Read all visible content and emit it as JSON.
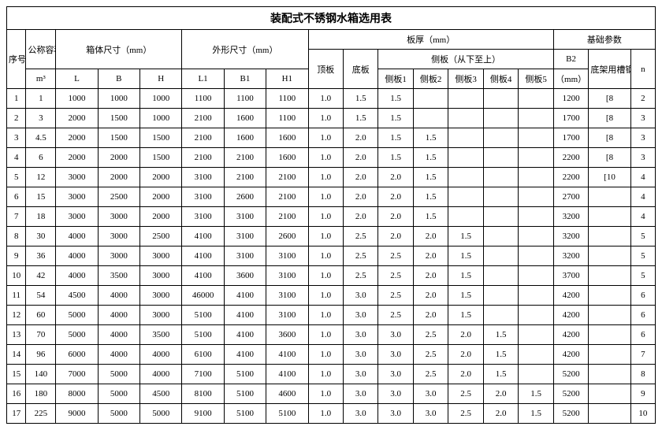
{
  "title": "装配式不锈钢水箱选用表",
  "headers": {
    "seq": "序号",
    "vol": "公称容积",
    "vol_unit": "m³",
    "box_dim": "箱体尺寸（mm）",
    "outer_dim": "外形尺寸（mm）",
    "thickness": "板厚（mm）",
    "foundation": "基础参数",
    "L": "L",
    "B": "B",
    "H": "H",
    "L1": "L1",
    "B1": "B1",
    "H1": "H1",
    "top_plate": "顶板",
    "bottom_plate": "底板",
    "side_plate": "侧板（从下至上）",
    "side1": "侧板1",
    "side2": "侧板2",
    "side3": "侧板3",
    "side4": "侧板4",
    "side5": "侧板5",
    "B2": "B2",
    "B2_unit": "（mm）",
    "channel": "底架用槽钢",
    "n": "n"
  },
  "rows": [
    {
      "seq": "1",
      "vol": "1",
      "L": "1000",
      "B": "1000",
      "H": "1000",
      "L1": "1100",
      "B1": "1100",
      "H1": "1100",
      "top": "1.0",
      "bot": "1.5",
      "s1": "1.5",
      "s2": "",
      "s3": "",
      "s4": "",
      "s5": "",
      "B2": "1200",
      "ch": "[8",
      "n": "2"
    },
    {
      "seq": "2",
      "vol": "3",
      "L": "2000",
      "B": "1500",
      "H": "1000",
      "L1": "2100",
      "B1": "1600",
      "H1": "1100",
      "top": "1.0",
      "bot": "1.5",
      "s1": "1.5",
      "s2": "",
      "s3": "",
      "s4": "",
      "s5": "",
      "B2": "1700",
      "ch": "[8",
      "n": "3"
    },
    {
      "seq": "3",
      "vol": "4.5",
      "L": "2000",
      "B": "1500",
      "H": "1500",
      "L1": "2100",
      "B1": "1600",
      "H1": "1600",
      "top": "1.0",
      "bot": "2.0",
      "s1": "1.5",
      "s2": "1.5",
      "s3": "",
      "s4": "",
      "s5": "",
      "B2": "1700",
      "ch": "[8",
      "n": "3"
    },
    {
      "seq": "4",
      "vol": "6",
      "L": "2000",
      "B": "2000",
      "H": "1500",
      "L1": "2100",
      "B1": "2100",
      "H1": "1600",
      "top": "1.0",
      "bot": "2.0",
      "s1": "1.5",
      "s2": "1.5",
      "s3": "",
      "s4": "",
      "s5": "",
      "B2": "2200",
      "ch": "[8",
      "n": "3"
    },
    {
      "seq": "5",
      "vol": "12",
      "L": "3000",
      "B": "2000",
      "H": "2000",
      "L1": "3100",
      "B1": "2100",
      "H1": "2100",
      "top": "1.0",
      "bot": "2.0",
      "s1": "2.0",
      "s2": "1.5",
      "s3": "",
      "s4": "",
      "s5": "",
      "B2": "2200",
      "ch": "[10",
      "n": "4"
    },
    {
      "seq": "6",
      "vol": "15",
      "L": "3000",
      "B": "2500",
      "H": "2000",
      "L1": "3100",
      "B1": "2600",
      "H1": "2100",
      "top": "1.0",
      "bot": "2.0",
      "s1": "2.0",
      "s2": "1.5",
      "s3": "",
      "s4": "",
      "s5": "",
      "B2": "2700",
      "ch": "",
      "n": "4"
    },
    {
      "seq": "7",
      "vol": "18",
      "L": "3000",
      "B": "3000",
      "H": "2000",
      "L1": "3100",
      "B1": "3100",
      "H1": "2100",
      "top": "1.0",
      "bot": "2.0",
      "s1": "2.0",
      "s2": "1.5",
      "s3": "",
      "s4": "",
      "s5": "",
      "B2": "3200",
      "ch": "",
      "n": "4"
    },
    {
      "seq": "8",
      "vol": "30",
      "L": "4000",
      "B": "3000",
      "H": "2500",
      "L1": "4100",
      "B1": "3100",
      "H1": "2600",
      "top": "1.0",
      "bot": "2.5",
      "s1": "2.0",
      "s2": "2.0",
      "s3": "1.5",
      "s4": "",
      "s5": "",
      "B2": "3200",
      "ch": "",
      "n": "5"
    },
    {
      "seq": "9",
      "vol": "36",
      "L": "4000",
      "B": "3000",
      "H": "3000",
      "L1": "4100",
      "B1": "3100",
      "H1": "3100",
      "top": "1.0",
      "bot": "2.5",
      "s1": "2.5",
      "s2": "2.0",
      "s3": "1.5",
      "s4": "",
      "s5": "",
      "B2": "3200",
      "ch": "",
      "n": "5"
    },
    {
      "seq": "10",
      "vol": "42",
      "L": "4000",
      "B": "3500",
      "H": "3000",
      "L1": "4100",
      "B1": "3600",
      "H1": "3100",
      "top": "1.0",
      "bot": "2.5",
      "s1": "2.5",
      "s2": "2.0",
      "s3": "1.5",
      "s4": "",
      "s5": "",
      "B2": "3700",
      "ch": "",
      "n": "5"
    },
    {
      "seq": "11",
      "vol": "54",
      "L": "4500",
      "B": "4000",
      "H": "3000",
      "L1": "46000",
      "B1": "4100",
      "H1": "3100",
      "top": "1.0",
      "bot": "3.0",
      "s1": "2.5",
      "s2": "2.0",
      "s3": "1.5",
      "s4": "",
      "s5": "",
      "B2": "4200",
      "ch": "",
      "n": "6"
    },
    {
      "seq": "12",
      "vol": "60",
      "L": "5000",
      "B": "4000",
      "H": "3000",
      "L1": "5100",
      "B1": "4100",
      "H1": "3100",
      "top": "1.0",
      "bot": "3.0",
      "s1": "2.5",
      "s2": "2.0",
      "s3": "1.5",
      "s4": "",
      "s5": "",
      "B2": "4200",
      "ch": "",
      "n": "6"
    },
    {
      "seq": "13",
      "vol": "70",
      "L": "5000",
      "B": "4000",
      "H": "3500",
      "L1": "5100",
      "B1": "4100",
      "H1": "3600",
      "top": "1.0",
      "bot": "3.0",
      "s1": "3.0",
      "s2": "2.5",
      "s3": "2.0",
      "s4": "1.5",
      "s5": "",
      "B2": "4200",
      "ch": "",
      "n": "6"
    },
    {
      "seq": "14",
      "vol": "96",
      "L": "6000",
      "B": "4000",
      "H": "4000",
      "L1": "6100",
      "B1": "4100",
      "H1": "4100",
      "top": "1.0",
      "bot": "3.0",
      "s1": "3.0",
      "s2": "2.5",
      "s3": "2.0",
      "s4": "1.5",
      "s5": "",
      "B2": "4200",
      "ch": "",
      "n": "7"
    },
    {
      "seq": "15",
      "vol": "140",
      "L": "7000",
      "B": "5000",
      "H": "4000",
      "L1": "7100",
      "B1": "5100",
      "H1": "4100",
      "top": "1.0",
      "bot": "3.0",
      "s1": "3.0",
      "s2": "2.5",
      "s3": "2.0",
      "s4": "1.5",
      "s5": "",
      "B2": "5200",
      "ch": "",
      "n": "8"
    },
    {
      "seq": "16",
      "vol": "180",
      "L": "8000",
      "B": "5000",
      "H": "4500",
      "L1": "8100",
      "B1": "5100",
      "H1": "4600",
      "top": "1.0",
      "bot": "3.0",
      "s1": "3.0",
      "s2": "3.0",
      "s3": "2.5",
      "s4": "2.0",
      "s5": "1.5",
      "B2": "5200",
      "ch": "",
      "n": "9"
    },
    {
      "seq": "17",
      "vol": "225",
      "L": "9000",
      "B": "5000",
      "H": "5000",
      "L1": "9100",
      "B1": "5100",
      "H1": "5100",
      "top": "1.0",
      "bot": "3.0",
      "s1": "3.0",
      "s2": "3.0",
      "s3": "2.5",
      "s4": "2.0",
      "s5": "1.5",
      "B2": "5200",
      "ch": "",
      "n": "10"
    }
  ]
}
